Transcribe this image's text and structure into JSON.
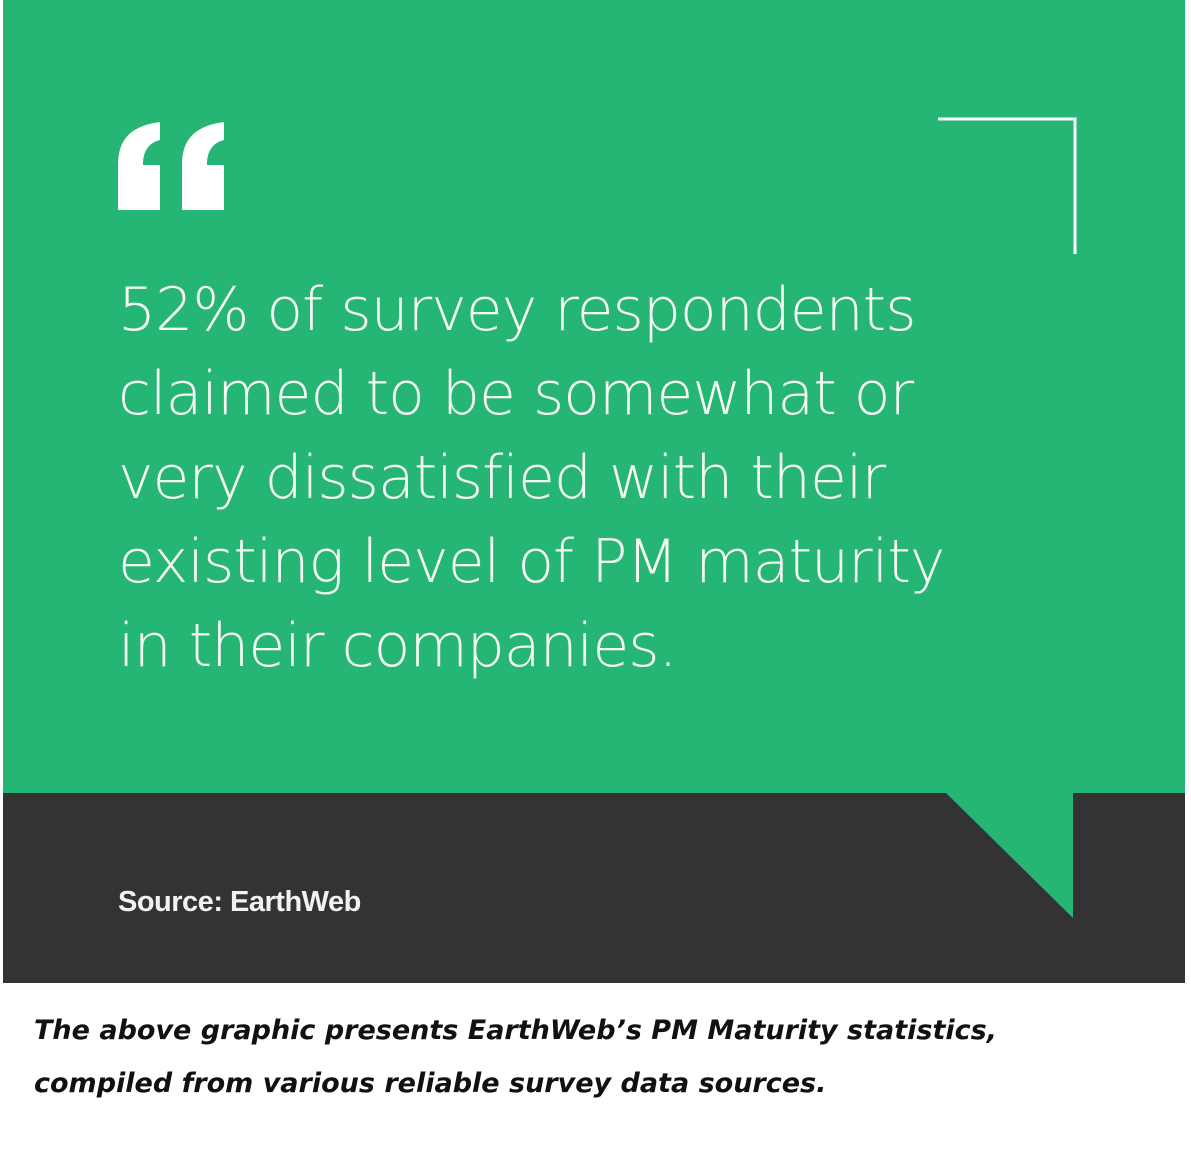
{
  "quote": {
    "lines": [
      "52% of survey respondents",
      "claimed to be somewhat or",
      "very dissatisfied with their",
      "existing level of PM maturity",
      "in their companies."
    ]
  },
  "source": "Source: EarthWeb",
  "caption": {
    "lines": [
      "The above graphic presents EarthWeb’s PM Maturity statistics,",
      "compiled from various reliable survey data sources."
    ]
  }
}
